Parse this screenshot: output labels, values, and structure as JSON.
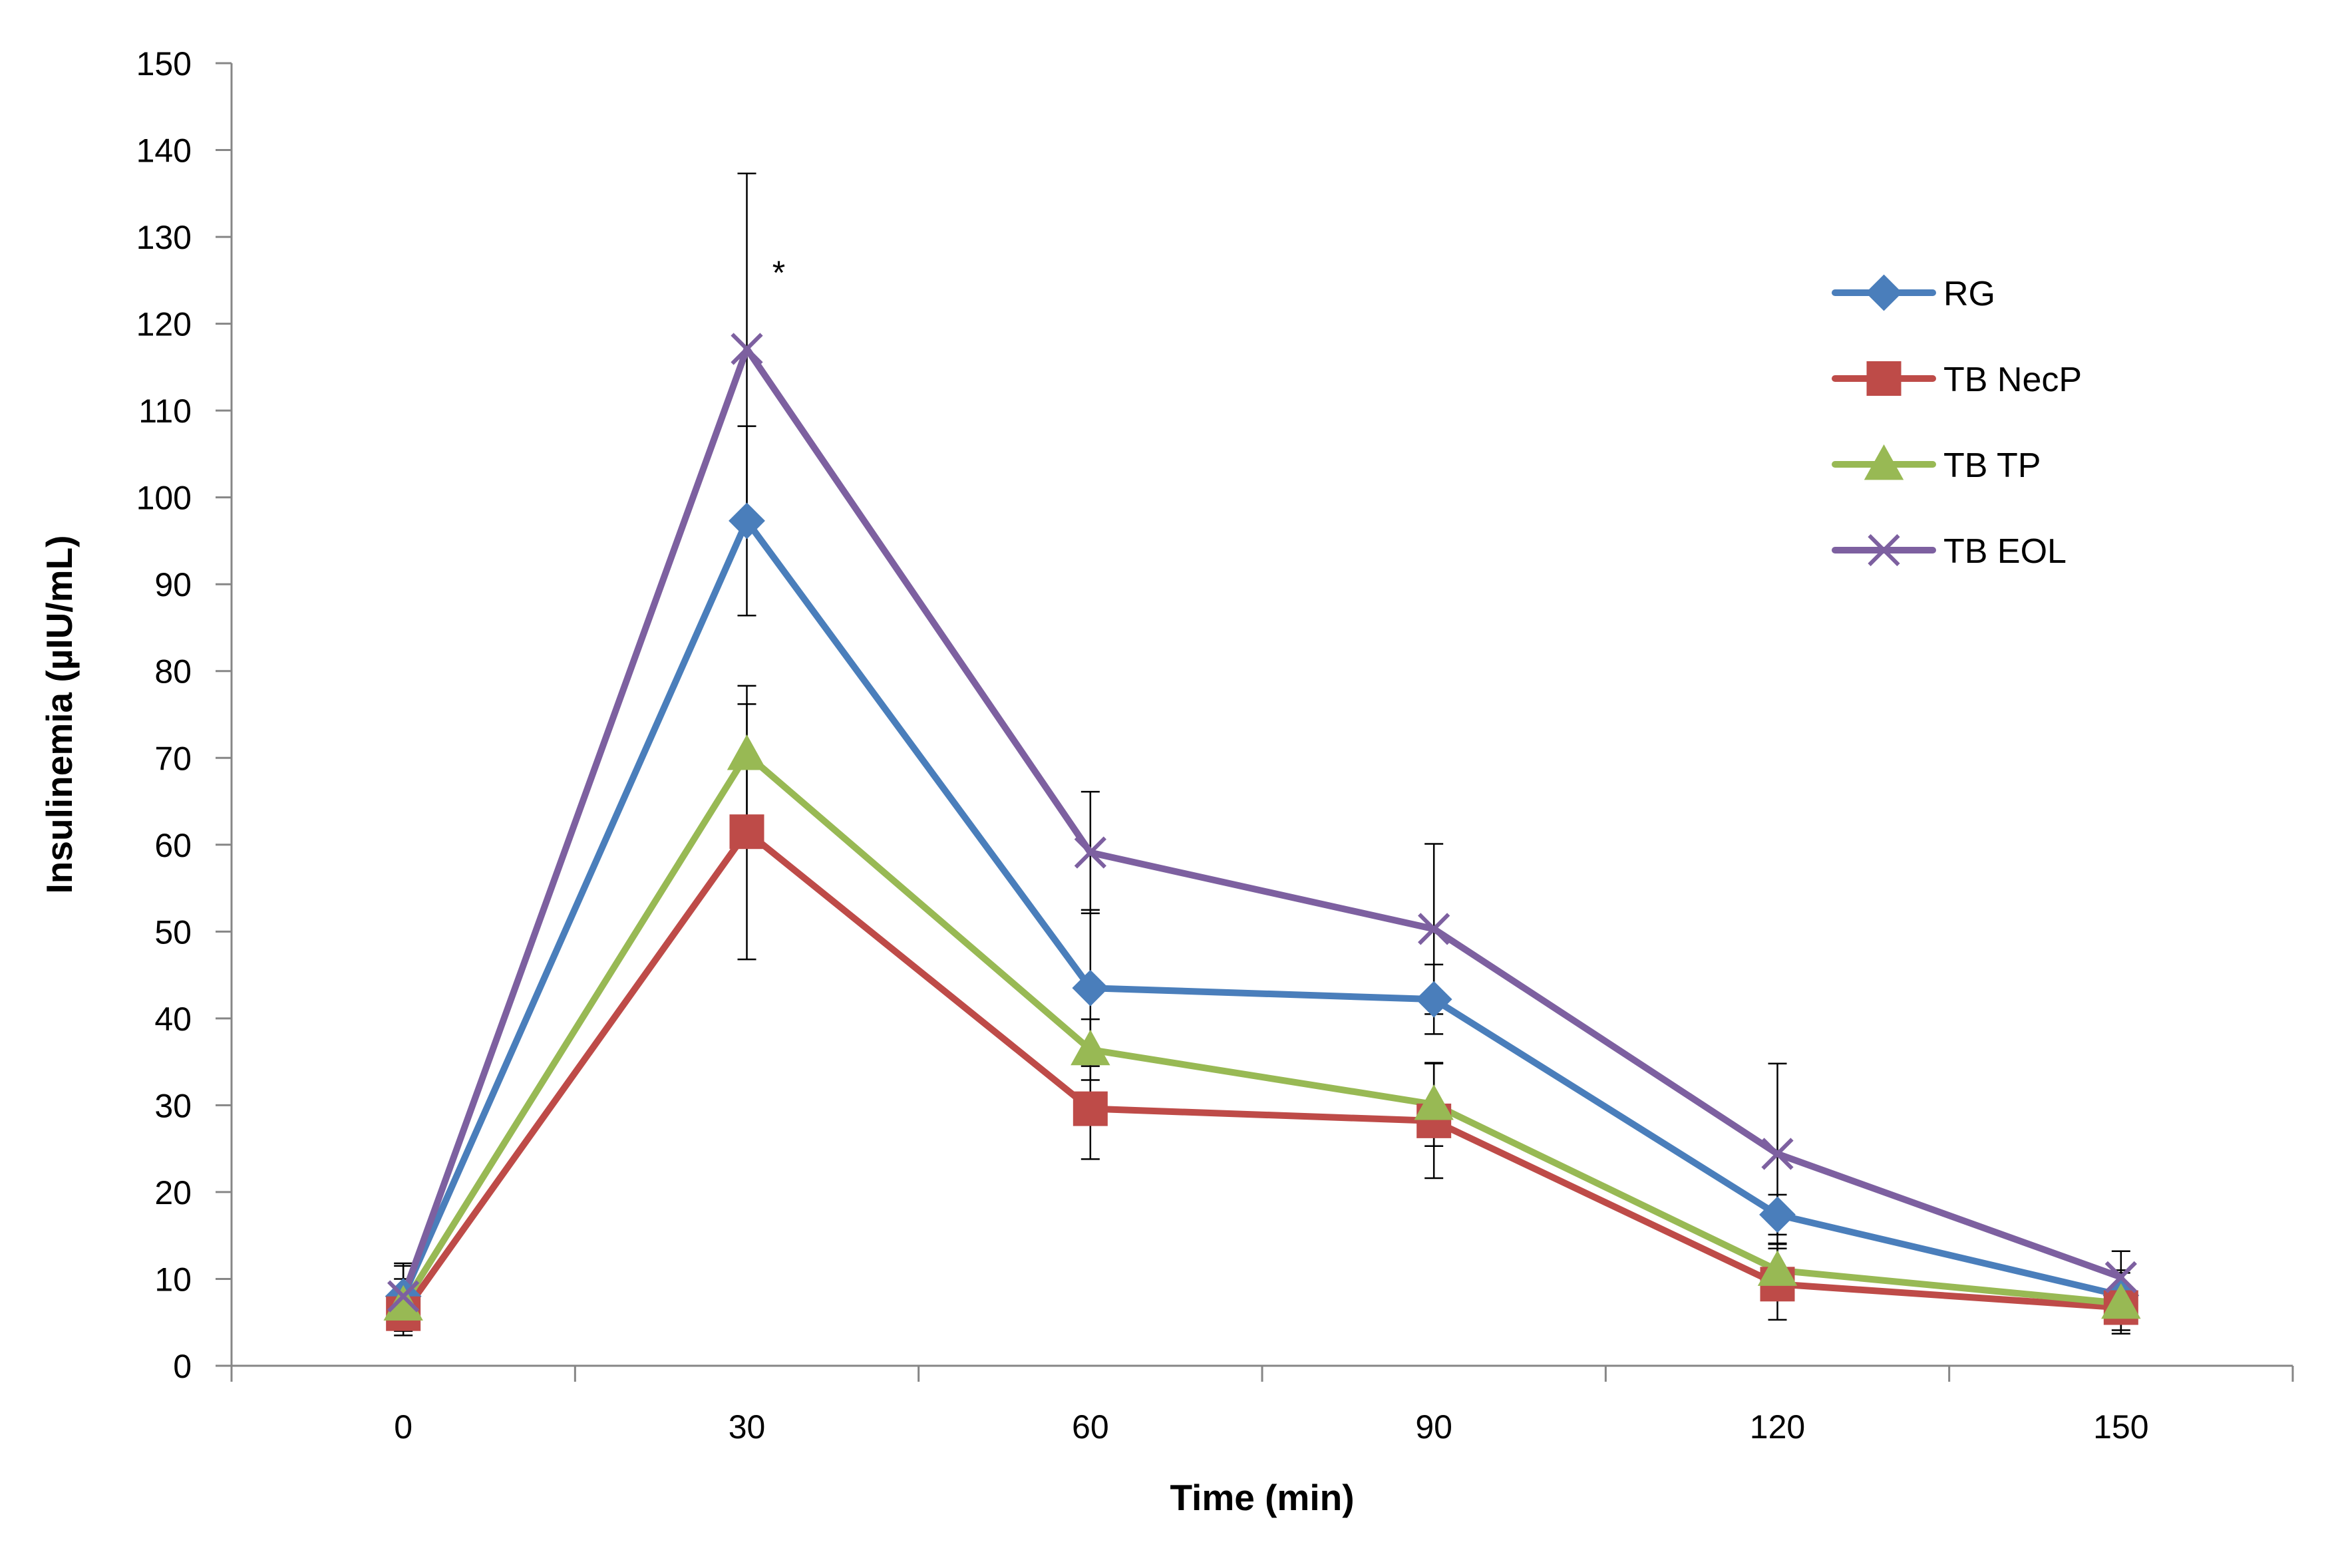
{
  "chart_data": {
    "type": "line",
    "title": "",
    "xlabel": "Time (min)",
    "ylabel": "Insulinemia (µIU/mL)",
    "x": [
      0,
      30,
      60,
      90,
      120,
      150
    ],
    "x_tick_labels": [
      "0",
      "30",
      "60",
      "90",
      "120",
      "150"
    ],
    "ylim": [
      0,
      150
    ],
    "y_ticks": [
      0,
      10,
      20,
      30,
      40,
      50,
      60,
      70,
      80,
      90,
      100,
      110,
      120,
      130,
      140,
      150
    ],
    "grid": false,
    "legend_position": "right",
    "series": [
      {
        "name": "RG",
        "color": "#4A7EBB",
        "marker": "diamond",
        "values": [
          8.0,
          97.3,
          43.5,
          42.2,
          17.4,
          8.1
        ],
        "error": [
          3.5,
          10.9,
          9.0,
          4.0,
          2.3,
          2.9
        ]
      },
      {
        "name": "TB NecP",
        "color": "#BE4B48",
        "marker": "square",
        "values": [
          6.0,
          61.5,
          29.6,
          28.2,
          9.4,
          6.7
        ],
        "error": [
          2.5,
          14.7,
          5.8,
          6.6,
          4.1,
          2.6
        ]
      },
      {
        "name": "TB TP",
        "color": "#98B954",
        "marker": "triangle",
        "values": [
          7.0,
          70.4,
          36.4,
          30.1,
          11.0,
          7.2
        ],
        "error": [
          3.0,
          7.9,
          3.5,
          4.8,
          3.1,
          3.5
        ]
      },
      {
        "name": "TB EOL",
        "color": "#7D60A0",
        "marker": "x",
        "values": [
          8.0,
          117.1,
          59.1,
          50.3,
          24.4,
          10.2
        ],
        "error": [
          3.8,
          20.2,
          7.0,
          9.8,
          10.4,
          3.0
        ]
      }
    ],
    "annotations": [
      {
        "text": "*",
        "x": 30,
        "y": 126.5
      }
    ]
  }
}
